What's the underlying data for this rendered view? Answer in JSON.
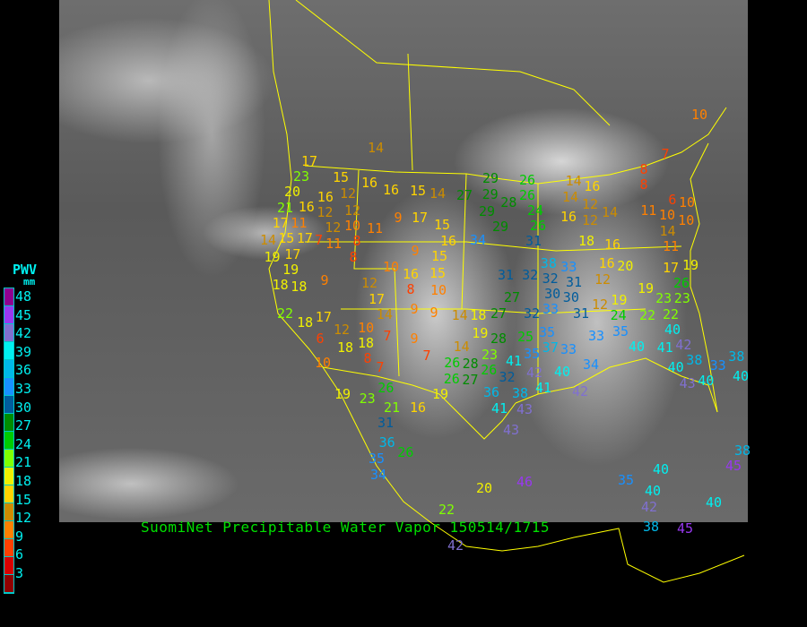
{
  "title": "SuomiNet Precipitable Water Vapor 150514/1715",
  "legend": {
    "title": "PWV",
    "unit": "mm",
    "labels": [
      "48",
      "45",
      "42",
      "39",
      "36",
      "33",
      "30",
      "27",
      "24",
      "21",
      "18",
      "15",
      "12",
      "9",
      "6",
      "3"
    ],
    "colors": [
      "#900090",
      "#9838f0",
      "#8070d0",
      "#00f0f0",
      "#00b8e8",
      "#1890ff",
      "#005c9c",
      "#008c00",
      "#00cc00",
      "#80ff00",
      "#f0f000",
      "#ffd400",
      "#cc8c00",
      "#ff8000",
      "#ff4000",
      "#d80000",
      "#900000"
    ]
  },
  "stations": [
    "14",
    "17",
    "23",
    "15",
    "16",
    "20",
    "16",
    "12",
    "16",
    "15",
    "14",
    "27",
    "29",
    "29",
    "28",
    "26",
    "26",
    "29",
    "29",
    "24",
    "26",
    "14",
    "16",
    "14",
    "12",
    "14",
    "16",
    "12",
    "11",
    "6",
    "10",
    "8",
    "8",
    "7",
    "10",
    "21",
    "16",
    "12",
    "12",
    "12",
    "10",
    "11",
    "9",
    "17",
    "15",
    "16",
    "34",
    "31",
    "17",
    "11",
    "7",
    "11",
    "8",
    "14",
    "15",
    "17",
    "9",
    "15",
    "19",
    "17",
    "19",
    "18",
    "18",
    "9",
    "8",
    "12",
    "10",
    "16",
    "15",
    "8",
    "10",
    "17",
    "14",
    "9",
    "9",
    "22",
    "18",
    "17",
    "12",
    "10",
    "6",
    "18",
    "18",
    "7",
    "9",
    "7",
    "8",
    "10",
    "7",
    "14",
    "18",
    "27",
    "19",
    "14",
    "28",
    "25",
    "23",
    "26",
    "26",
    "26",
    "27",
    "28",
    "27",
    "31",
    "32",
    "38",
    "33",
    "32",
    "31",
    "30",
    "30",
    "32",
    "33",
    "31",
    "35",
    "35",
    "37",
    "33",
    "41",
    "32",
    "42",
    "41",
    "40",
    "34",
    "33",
    "35",
    "40",
    "41",
    "42",
    "40",
    "38",
    "40",
    "33",
    "40",
    "43",
    "38",
    "19",
    "24",
    "22",
    "22",
    "23",
    "19",
    "23",
    "12",
    "12",
    "16",
    "20",
    "17",
    "19",
    "26",
    "18",
    "16",
    "11",
    "14",
    "10",
    "10",
    "36",
    "41",
    "38",
    "43",
    "42",
    "19",
    "16",
    "21",
    "26",
    "23",
    "19",
    "31",
    "36",
    "26",
    "35",
    "34",
    "20",
    "46",
    "22",
    "42",
    "43",
    "35",
    "40",
    "40",
    "42",
    "40",
    "38",
    "45",
    "45",
    "38",
    "40"
  ]
}
